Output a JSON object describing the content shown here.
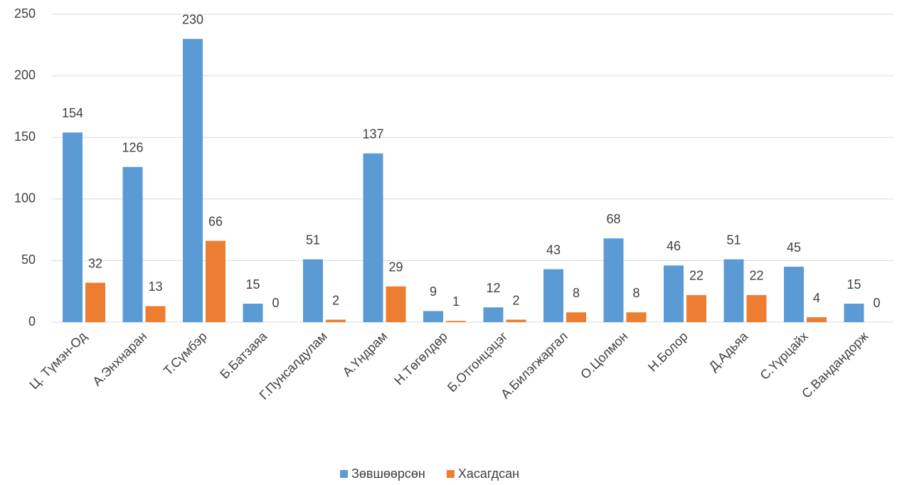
{
  "chart_data": {
    "type": "bar",
    "categories": [
      "Ц. Түмэн-Од",
      "А.Энхнаран",
      "Т.Сүмбэр",
      "Б.Батзаяа",
      "Г.Пунсалдулам",
      "А.Үндрам",
      "Н.Төгөлдөр",
      "Б.Отгонцэцэг",
      "А.Билэгжаргал",
      "О.Цолмон",
      "Н.Болор",
      "Д.Адьяа",
      "С.Үүрцайх",
      "С.Вандандорж"
    ],
    "series": [
      {
        "name": "Зөвшөөрсөн",
        "color": "#5b9bd5",
        "values": [
          154,
          126,
          230,
          15,
          51,
          137,
          9,
          12,
          43,
          68,
          46,
          51,
          45,
          15
        ]
      },
      {
        "name": "Хасагдсан",
        "color": "#ed7d31",
        "values": [
          32,
          13,
          66,
          0,
          2,
          29,
          1,
          2,
          8,
          8,
          22,
          22,
          4,
          0
        ]
      }
    ],
    "ylim": [
      0,
      250
    ],
    "yticks": [
      0,
      50,
      100,
      150,
      200,
      250
    ],
    "grid": true,
    "legend": "bottom"
  }
}
